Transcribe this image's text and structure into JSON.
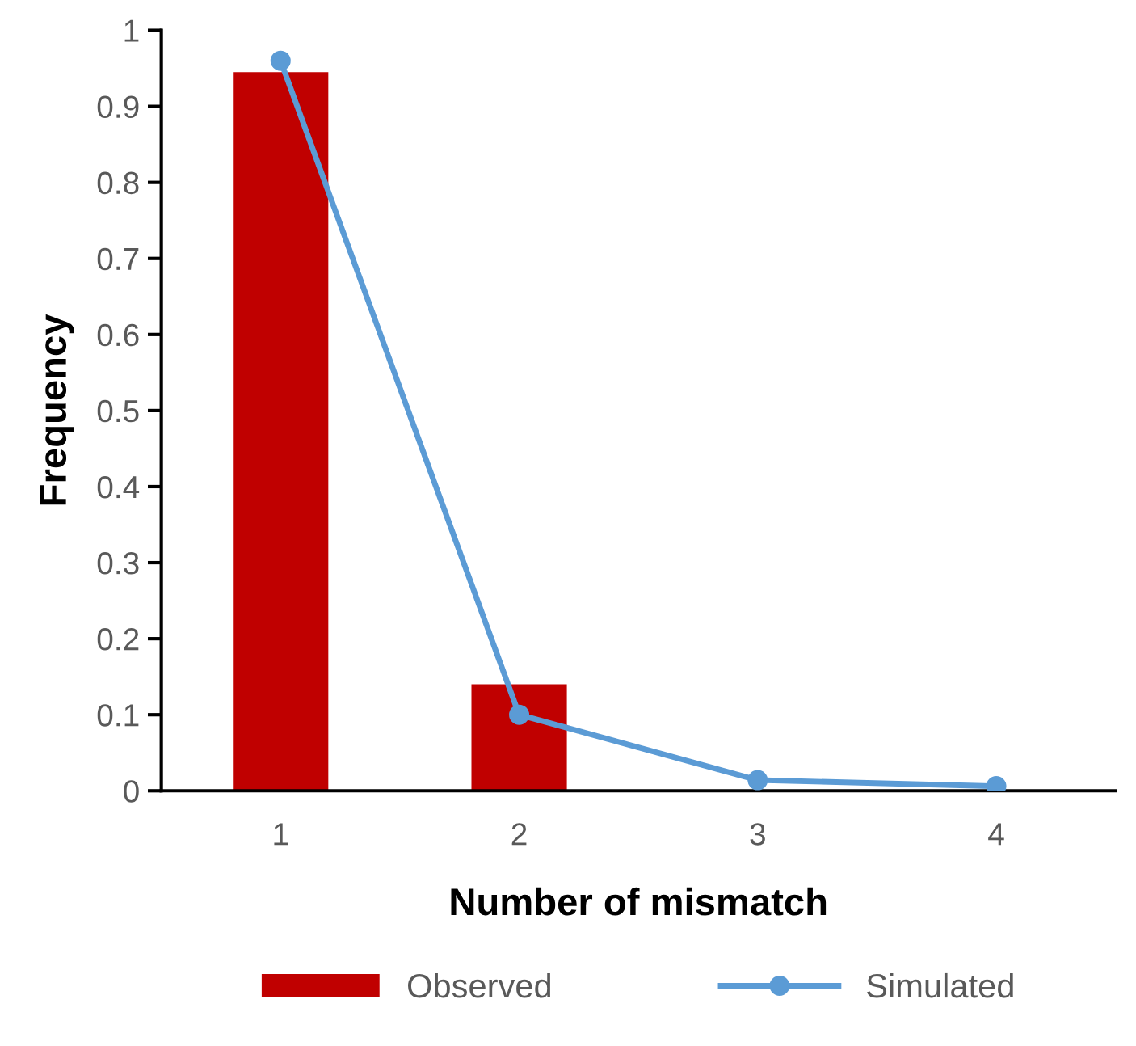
{
  "chart_data": {
    "type": "bar",
    "xlabel": "Number of mismatch",
    "ylabel": "Frequency",
    "categories": [
      "1",
      "2",
      "3",
      "4"
    ],
    "series": [
      {
        "name": "Observed",
        "color": "#c00000",
        "values": [
          0.945,
          0.14,
          0,
          0
        ]
      },
      {
        "name": "Simulated",
        "type": "line",
        "color": "#5b9bd5",
        "values": [
          0.96,
          0.1,
          0.014,
          0.006
        ],
        "marker": "circle"
      }
    ],
    "ylim": [
      0,
      1
    ],
    "yticks": [
      0,
      {
        "value": 0.1,
        "label": "0.1"
      },
      {
        "value": 0.2,
        "label": "0.2"
      },
      {
        "value": 0.3,
        "label": "0.3"
      },
      {
        "value": 0.4,
        "label": "0.4"
      },
      {
        "value": 0.5,
        "label": "0.5"
      },
      {
        "value": 0.6,
        "label": "0.6"
      },
      {
        "value": 0.7,
        "label": "0.7"
      },
      {
        "value": 0.8,
        "label": "0.8"
      },
      {
        "value": 0.9,
        "label": "0.9"
      },
      1
    ],
    "grid": false,
    "legend": "bottom"
  }
}
